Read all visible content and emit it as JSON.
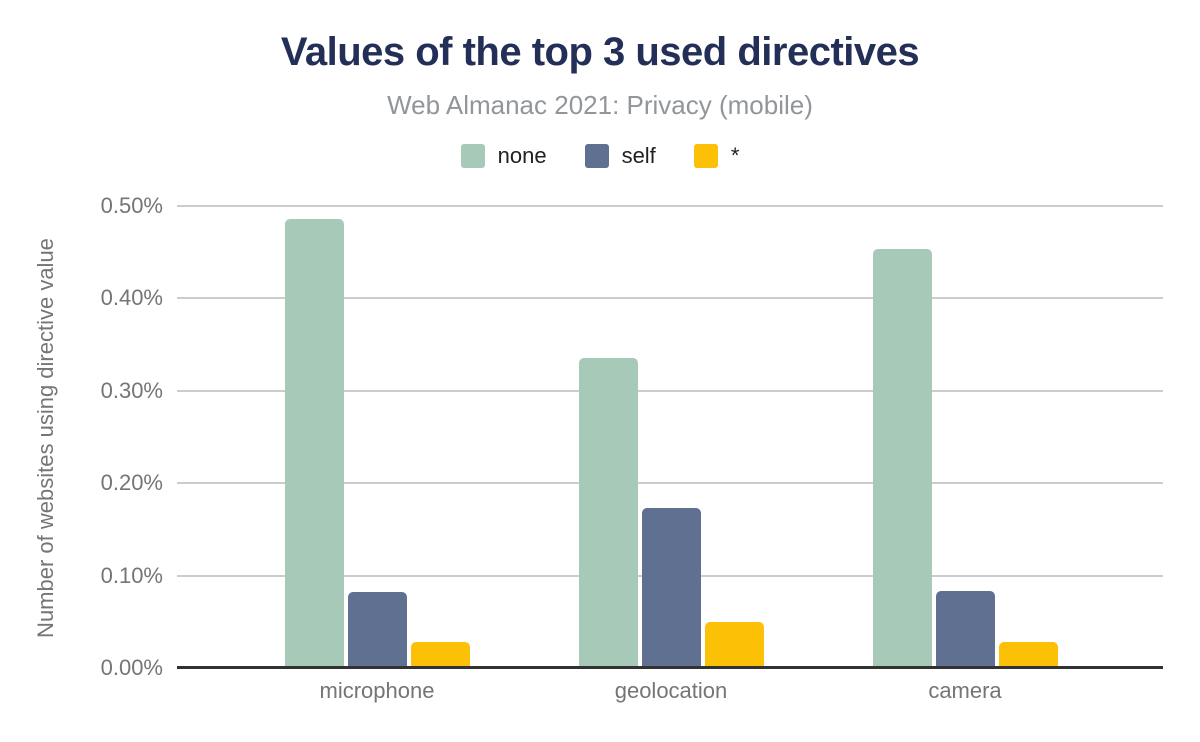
{
  "header": {
    "title": "Values of the top 3 used directives",
    "subtitle": "Web Almanac 2021: Privacy (mobile)"
  },
  "colors": {
    "title_navy": "#232f56",
    "subtitle_gray": "#92969a",
    "axis_text_gray": "#757575",
    "gridline_gray": "#cccccc",
    "axis_line_dark": "#323232",
    "legend_text": "#212121",
    "series_none": "#a7c9b7",
    "series_self": "#5f7090",
    "series_star": "#fcc006"
  },
  "chart_data": {
    "type": "bar",
    "title": "Values of the top 3 used directives",
    "subtitle": "Web Almanac 2021: Privacy (mobile)",
    "categories": [
      "microphone",
      "geolocation",
      "camera"
    ],
    "series": [
      {
        "name": "none",
        "color": "#a7c9b7",
        "values": [
          0.486,
          0.335,
          0.453
        ]
      },
      {
        "name": "self",
        "color": "#5f7090",
        "values": [
          0.082,
          0.173,
          0.083
        ]
      },
      {
        "name": "*",
        "color": "#fcc006",
        "values": [
          0.028,
          0.05,
          0.028
        ]
      }
    ],
    "xlabel": "",
    "ylabel": "Number of websites using directive value",
    "ylim": [
      0,
      0.5
    ],
    "yticks": [
      "0.00%",
      "0.10%",
      "0.20%",
      "0.30%",
      "0.40%",
      "0.50%"
    ],
    "ytick_format": "percent",
    "grid": true,
    "legend_position": "top-center",
    "background": "#ffffff"
  }
}
